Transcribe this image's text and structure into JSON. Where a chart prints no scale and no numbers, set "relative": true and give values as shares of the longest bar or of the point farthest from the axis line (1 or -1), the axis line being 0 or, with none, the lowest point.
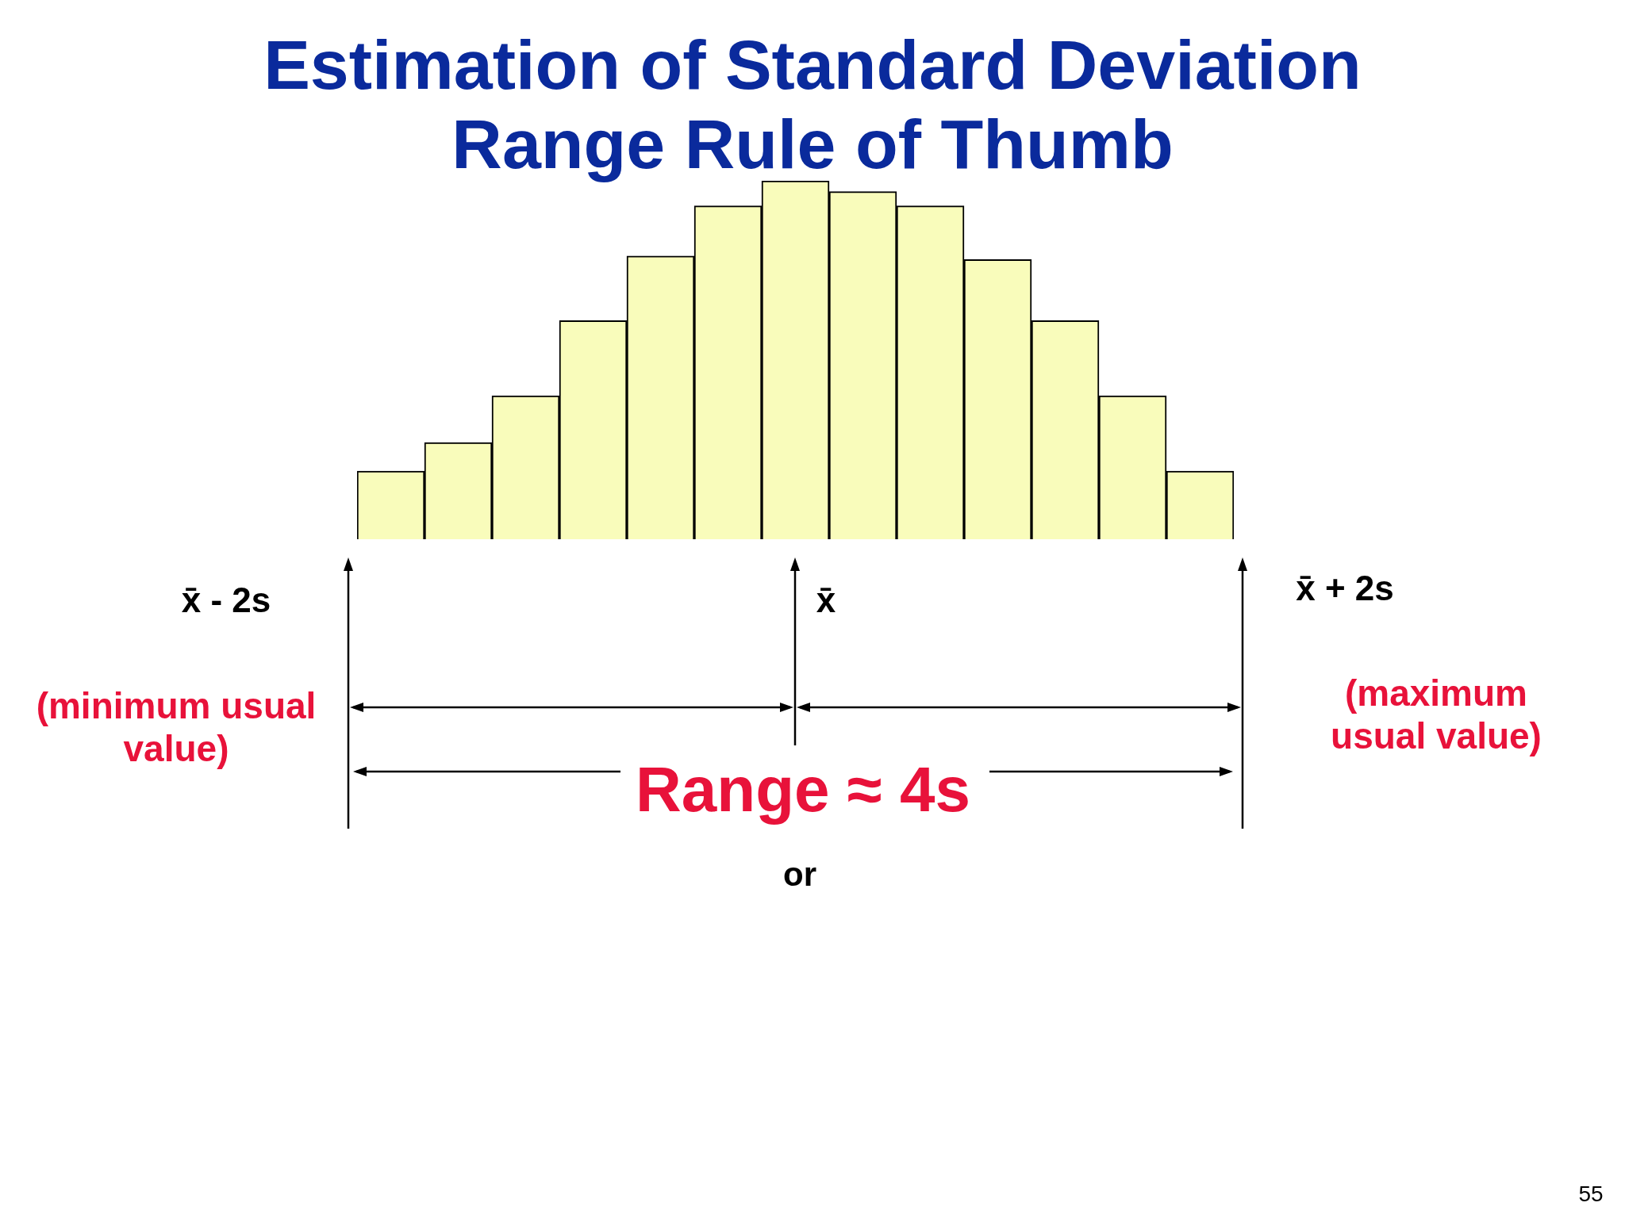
{
  "chart_data": {
    "type": "bar",
    "title": "Estimation of Standard Deviation\nRange Rule of Thumb",
    "relative": true,
    "categories": [
      null,
      null,
      null,
      null,
      null,
      null,
      null,
      null,
      null,
      null,
      null,
      null,
      null
    ],
    "values": [
      0.19,
      0.27,
      0.4,
      0.61,
      0.79,
      0.93,
      1,
      0.97,
      0.93,
      0.78,
      0.61,
      0.4,
      0.19
    ],
    "color": "#f9fcbb",
    "annotations": [
      "x̄ - 2s",
      "x̄",
      "x̄ + 2s",
      "(minimum usual value)",
      "(maximum usual value)",
      "Range ≈ 4s",
      "or",
      "55"
    ]
  }
}
